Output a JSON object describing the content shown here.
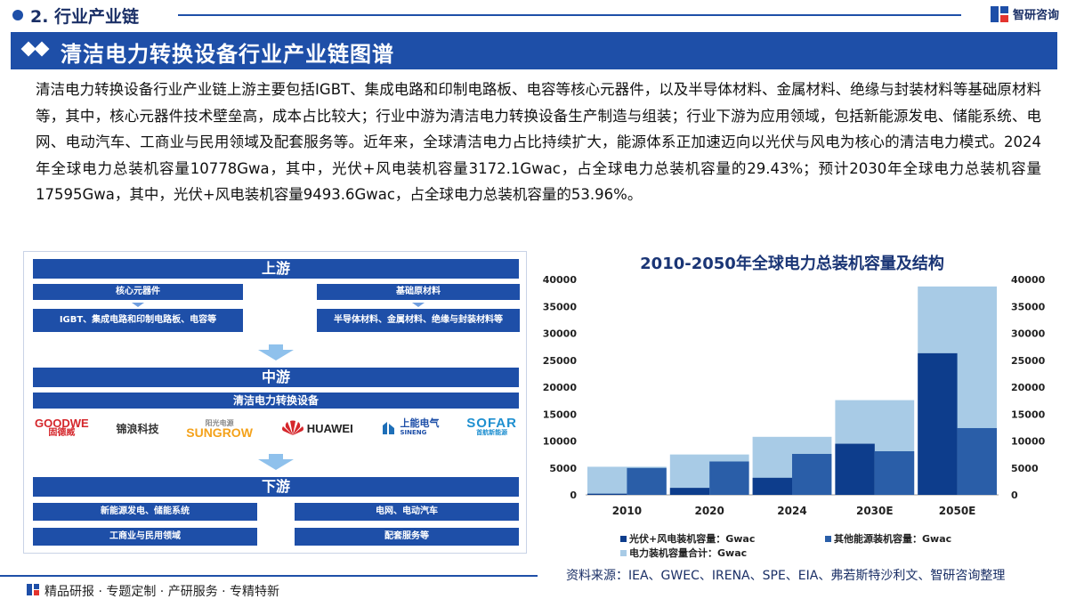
{
  "header": {
    "section": "2. 行业产业链",
    "brand": "智研咨询",
    "title": "清洁电力转换设备行业产业链图谱"
  },
  "intro": "清洁电力转换设备行业产业链上游主要包括IGBT、集成电路和印制电路板、电容等核心元器件，以及半导体材料、金属材料、绝缘与封装材料等基础原材料等，其中，核心元器件技术壁垒高，成本占比较大；行业中游为清洁电力转换设备生产制造与组装；行业下游为应用领域，包括新能源发电、储能系统、电网、电动汽车、工商业与民用领域及配套服务等。近年来，全球清洁电力占比持续扩大，能源体系正加速迈向以光伏与风电为核心的清洁电力模式。2024年全球电力总装机容量10778Gwa，其中，光伏+风电装机容量3172.1Gwac，占全球电力总装机容量的29.43%；预计2030年全球电力总装机容量17595Gwa，其中，光伏+风电装机容量9493.6Gwac，占全球电力总装机容量的53.96%。",
  "chain": {
    "upstream": {
      "label": "上游",
      "left_head": "核心元器件",
      "left_body": "IGBT、集成电路和印制电路板、电容等",
      "right_head": "基础原材料",
      "right_body": "半导体材料、金属材料、绝缘与封装材料等"
    },
    "midstream": {
      "label": "中游",
      "sub": "清洁电力转换设备",
      "logos": [
        "GOODWE",
        "固德威",
        "锦浪科技",
        "阳光电源",
        "SUNGROW",
        "HUAWEI",
        "上能电气",
        "SINENG",
        "SOFAR",
        "首航新能源"
      ]
    },
    "downstream": {
      "label": "下游",
      "items": [
        "新能源发电、储能系统",
        "电网、电动汽车",
        "工商业与民用领域",
        "配套服务等"
      ]
    }
  },
  "chart_data": {
    "type": "bar",
    "title": "2010-2050年全球电力总装机容量及结构",
    "categories": [
      "2010",
      "2020",
      "2024",
      "2030E",
      "2050E"
    ],
    "series": [
      {
        "name": "光伏+风电装机容量：Gwac",
        "values": [
          220,
          1300,
          3172.1,
          9493.6,
          26300
        ],
        "color": "#0d3d8c"
      },
      {
        "name": "其他能源装机容量：Gwac",
        "values": [
          5000,
          6200,
          7605.9,
          8101.4,
          12400
        ],
        "color": "#2a5ea8"
      },
      {
        "name": "电力装机容量合计：Gwac",
        "values": [
          5220,
          7500,
          10778,
          17595,
          38700
        ],
        "color": "#a8cbe6"
      }
    ],
    "ylim": [
      0,
      40000
    ],
    "yticks": [
      0,
      5000,
      10000,
      15000,
      20000,
      25000,
      30000,
      35000,
      40000
    ],
    "grid": false,
    "legend": "bottom"
  },
  "source": "资料来源：IEA、GWEC、IRENA、SPE、EIA、弗若斯特沙利文、智研咨询整理",
  "footer": "精品研报 · 专题定制 · 产研服务 · 专精特新"
}
